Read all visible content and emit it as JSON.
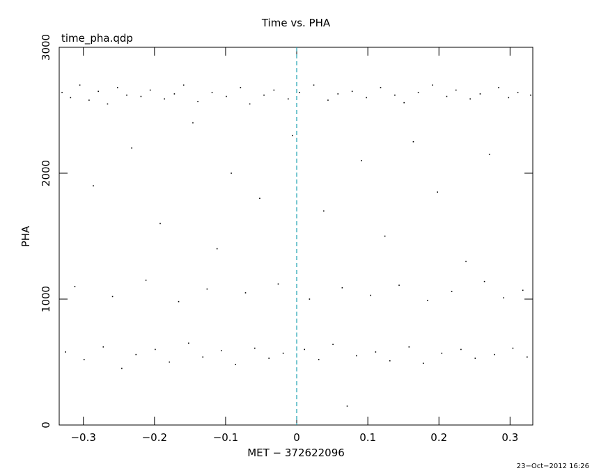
{
  "chart_data": {
    "type": "scatter",
    "title": "Time vs. PHA",
    "subtitle": "time_pha.qdp",
    "x_label": "MET − 372622096",
    "y_label": "PHA",
    "footer": "23−Oct−2012 16:26",
    "color": "#000000",
    "vline": 0,
    "vline_color": "#1a9fb0",
    "xlim": [
      -0.334,
      0.332
    ],
    "ylim": [
      0,
      3000
    ],
    "xticks": [
      {
        "value": -0.3,
        "label": "−0.3"
      },
      {
        "value": -0.2,
        "label": "−0.2"
      },
      {
        "value": -0.1,
        "label": "−0.1"
      },
      0,
      0.1,
      0.2,
      0.3
    ],
    "yticks": [
      0,
      1000,
      2000,
      3000
    ],
    "x": [
      -0.33,
      -0.325,
      -0.318,
      -0.312,
      -0.305,
      -0.299,
      -0.292,
      -0.286,
      -0.279,
      -0.272,
      -0.266,
      -0.259,
      -0.252,
      -0.246,
      -0.239,
      -0.232,
      -0.226,
      -0.219,
      -0.212,
      -0.206,
      -0.199,
      -0.192,
      -0.186,
      -0.179,
      -0.172,
      -0.166,
      -0.159,
      -0.152,
      -0.146,
      -0.139,
      -0.132,
      -0.126,
      -0.119,
      -0.112,
      -0.106,
      -0.099,
      -0.092,
      -0.086,
      -0.079,
      -0.072,
      -0.066,
      -0.059,
      -0.052,
      -0.046,
      -0.039,
      -0.032,
      -0.026,
      -0.019,
      -0.012,
      -0.006,
      0.004,
      0.011,
      0.018,
      0.024,
      0.031,
      0.038,
      0.044,
      0.051,
      0.058,
      0.064,
      0.071,
      0.078,
      0.084,
      0.091,
      0.098,
      0.104,
      0.111,
      0.118,
      0.124,
      0.131,
      0.138,
      0.144,
      0.151,
      0.158,
      0.164,
      0.171,
      0.178,
      0.184,
      0.191,
      0.198,
      0.204,
      0.211,
      0.218,
      0.224,
      0.231,
      0.238,
      0.244,
      0.251,
      0.258,
      0.264,
      0.271,
      0.278,
      0.284,
      0.291,
      0.298,
      0.304,
      0.311,
      0.318,
      0.324,
      0.329
    ],
    "y": [
      2640,
      580,
      2600,
      1100,
      2700,
      520,
      2580,
      1900,
      2650,
      620,
      2550,
      1020,
      2680,
      450,
      2620,
      2200,
      560,
      2610,
      1150,
      2660,
      600,
      1600,
      2590,
      500,
      2630,
      980,
      2700,
      650,
      2400,
      2570,
      540,
      1080,
      2640,
      1400,
      590,
      2610,
      2000,
      480,
      2680,
      1050,
      2550,
      610,
      1800,
      2620,
      530,
      2660,
      1120,
      570,
      2590,
      2300,
      2640,
      600,
      1000,
      2700,
      520,
      1700,
      2580,
      640,
      2630,
      1090,
      150,
      2650,
      550,
      2100,
      2600,
      1030,
      580,
      2680,
      1500,
      510,
      2620,
      1110,
      2560,
      620,
      2250,
      2640,
      490,
      990,
      2700,
      1850,
      570,
      2610,
      1060,
      2660,
      600,
      1300,
      2590,
      530,
      2630,
      1140,
      2150,
      560,
      2680,
      1010,
      2600,
      610,
      2640,
      1070,
      540,
      2620
    ]
  }
}
